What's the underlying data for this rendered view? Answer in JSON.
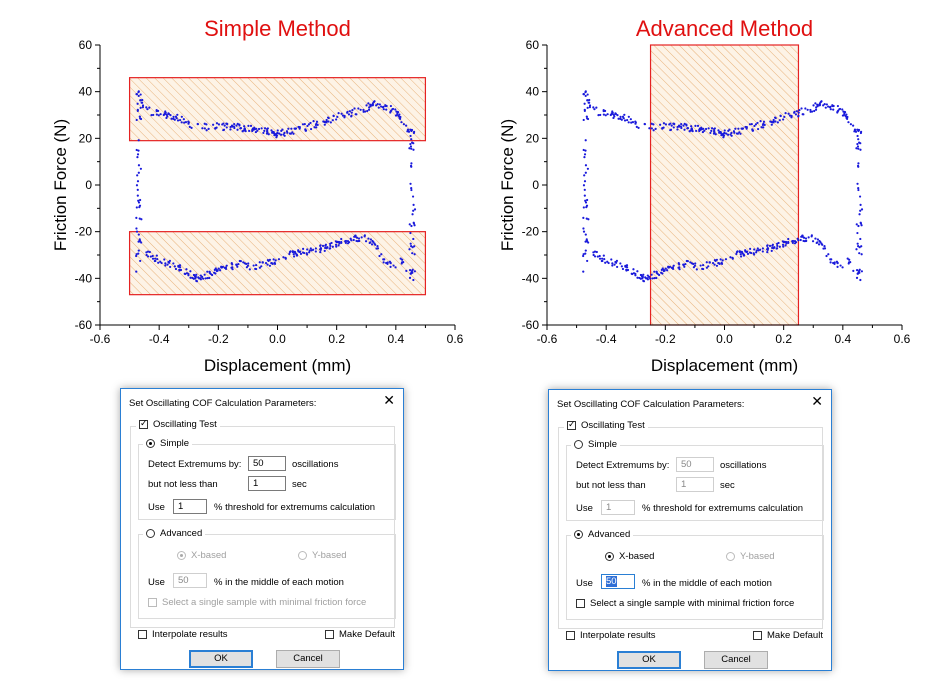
{
  "chart_data": [
    {
      "type": "scatter",
      "title": "Simple Method",
      "xlabel": "Displacement (mm)",
      "ylabel": "Friction Force (N)",
      "xlim": [
        -0.6,
        0.6
      ],
      "ylim": [
        -60,
        60
      ],
      "xticks": [
        "-0.6",
        "-0.4",
        "-0.2",
        "0.0",
        "0.2",
        "0.4",
        "0.6"
      ],
      "yticks": [
        "60",
        "40",
        "20",
        "0",
        "-20",
        "-40",
        "-60"
      ],
      "series_color": "#1a1adb",
      "upper": {
        "x": [
          -0.47,
          -0.45,
          -0.42,
          -0.38,
          -0.34,
          -0.3,
          -0.25,
          -0.2,
          -0.15,
          -0.1,
          -0.05,
          0.0,
          0.05,
          0.1,
          0.15,
          0.2,
          0.25,
          0.3,
          0.33,
          0.36,
          0.4,
          0.43,
          0.45
        ],
        "y": [
          40,
          33,
          31,
          30,
          29,
          26,
          25,
          25,
          25,
          24,
          23,
          22,
          23,
          25,
          27,
          29,
          31,
          33,
          35,
          34,
          31,
          27,
          20
        ]
      },
      "lower": {
        "x": [
          -0.47,
          -0.45,
          -0.42,
          -0.38,
          -0.34,
          -0.3,
          -0.27,
          -0.22,
          -0.18,
          -0.12,
          -0.08,
          -0.02,
          0.03,
          0.08,
          0.13,
          0.18,
          0.22,
          0.26,
          0.3,
          0.33,
          0.36,
          0.39,
          0.42,
          0.44,
          0.46
        ],
        "y": [
          -24,
          -28,
          -31,
          -33,
          -35,
          -38,
          -40,
          -38,
          -35,
          -34,
          -35,
          -33,
          -30,
          -29,
          -28,
          -26,
          -24,
          -23,
          -23,
          -26,
          -32,
          -34,
          -33,
          -36,
          -40
        ]
      },
      "highlight_regions": [
        {
          "x": [
            -0.5,
            0.5
          ],
          "y": [
            19,
            46
          ]
        },
        {
          "x": [
            -0.5,
            0.5
          ],
          "y": [
            -47,
            -20
          ]
        }
      ],
      "region_color": "#e52222"
    },
    {
      "type": "scatter",
      "title": "Advanced Method",
      "xlabel": "Displacement (mm)",
      "ylabel": "Friction Force (N)",
      "xlim": [
        -0.6,
        0.6
      ],
      "ylim": [
        -60,
        60
      ],
      "xticks": [
        "-0.6",
        "-0.4",
        "-0.2",
        "0.0",
        "0.2",
        "0.4",
        "0.6"
      ],
      "yticks": [
        "60",
        "40",
        "20",
        "0",
        "-20",
        "-40",
        "-60"
      ],
      "series_color": "#1a1adb",
      "upper": {
        "x": [
          -0.47,
          -0.45,
          -0.42,
          -0.38,
          -0.34,
          -0.3,
          -0.25,
          -0.2,
          -0.15,
          -0.1,
          -0.05,
          0.0,
          0.05,
          0.1,
          0.15,
          0.2,
          0.25,
          0.3,
          0.33,
          0.36,
          0.4,
          0.43,
          0.45
        ],
        "y": [
          40,
          33,
          31,
          30,
          29,
          26,
          25,
          25,
          25,
          24,
          23,
          22,
          23,
          25,
          27,
          29,
          31,
          33,
          35,
          34,
          31,
          27,
          20
        ]
      },
      "lower": {
        "x": [
          -0.47,
          -0.45,
          -0.42,
          -0.38,
          -0.34,
          -0.3,
          -0.27,
          -0.22,
          -0.18,
          -0.12,
          -0.08,
          -0.02,
          0.03,
          0.08,
          0.13,
          0.18,
          0.22,
          0.26,
          0.3,
          0.33,
          0.36,
          0.39,
          0.42,
          0.44,
          0.46
        ],
        "y": [
          -24,
          -28,
          -31,
          -33,
          -35,
          -38,
          -40,
          -38,
          -35,
          -34,
          -35,
          -33,
          -30,
          -29,
          -28,
          -26,
          -24,
          -23,
          -23,
          -26,
          -32,
          -34,
          -33,
          -36,
          -40
        ]
      },
      "highlight_regions": [
        {
          "x": [
            -0.25,
            0.25
          ],
          "y": [
            -60,
            60
          ]
        }
      ],
      "region_color": "#e52222"
    }
  ],
  "dialogs": [
    {
      "title": "Set Oscillating COF Calculation Parameters:",
      "oscillating_test": "Oscillating Test",
      "simple": "Simple",
      "detect_label": "Detect Extremums by:",
      "detect_value": "50",
      "oscillations": "oscillations",
      "not_less_label": "but not less than",
      "not_less_value": "1",
      "sec": "sec",
      "use": "Use",
      "threshold_value": "1",
      "threshold_label": "% threshold for extremums calculation",
      "advanced": "Advanced",
      "x_based": "X-based",
      "y_based": "Y-based",
      "middle_value": "50",
      "middle_label": "% in the middle of each motion",
      "single_sample": "Select a single sample with minimal friction force",
      "interpolate": "Interpolate results",
      "make_default": "Make Default",
      "ok": "OK",
      "cancel": "Cancel",
      "mode": "simple"
    },
    {
      "title": "Set Oscillating COF Calculation Parameters:",
      "oscillating_test": "Oscillating Test",
      "simple": "Simple",
      "detect_label": "Detect Extremums by:",
      "detect_value": "50",
      "oscillations": "oscillations",
      "not_less_label": "but not less than",
      "not_less_value": "1",
      "sec": "sec",
      "use": "Use",
      "threshold_value": "1",
      "threshold_label": "% threshold for extremums calculation",
      "advanced": "Advanced",
      "x_based": "X-based",
      "y_based": "Y-based",
      "middle_value": "50",
      "middle_label": "% in the middle of each motion",
      "single_sample": "Select a single sample with minimal friction force",
      "interpolate": "Interpolate results",
      "make_default": "Make Default",
      "ok": "OK",
      "cancel": "Cancel",
      "mode": "advanced"
    }
  ]
}
